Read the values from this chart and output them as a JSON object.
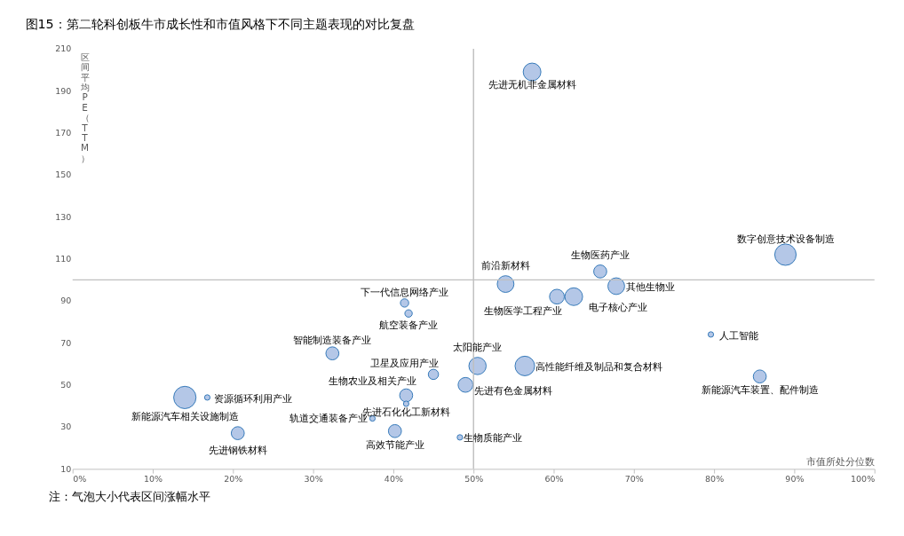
{
  "chart_data": {
    "type": "bubble",
    "title": "图15：第二轮科创板牛市成长性和市值风格下不同主题表现的对比复盘",
    "xlabel": "市值所处分位数",
    "ylabel": "区间平均PE（TTM）",
    "series": [
      {
        "name": "先进无机非金属材料",
        "color": "#b4c7e7",
        "x": [
          57.3
        ],
        "values": [
          199
        ],
        "sizes": [
          0.63
        ]
      },
      {
        "name": "数字创意技术设备制造",
        "color": "#b4c7e7",
        "x": [
          88.9
        ],
        "values": [
          112
        ],
        "sizes": [
          0.92
        ]
      },
      {
        "name": "生物医药产业",
        "color": "#b4c7e7",
        "x": [
          65.8
        ],
        "values": [
          104
        ],
        "sizes": [
          0.34
        ]
      },
      {
        "name": "其他生物业",
        "color": "#b4c7e7",
        "x": [
          67.8
        ],
        "values": [
          97
        ],
        "sizes": [
          0.56
        ]
      },
      {
        "name": "前沿新材料",
        "color": "#b4c7e7",
        "x": [
          54
        ],
        "values": [
          98
        ],
        "sizes": [
          0.56
        ]
      },
      {
        "name": "电子核心产业",
        "color": "#b4c7e7",
        "x": [
          62.5
        ],
        "values": [
          92
        ],
        "sizes": [
          0.63
        ]
      },
      {
        "name": "生物医学工程产业",
        "color": "#b4c7e7",
        "x": [
          60.4
        ],
        "values": [
          92
        ],
        "sizes": [
          0.44
        ]
      },
      {
        "name": "下一代信息网络产业",
        "color": "#b4c7e7",
        "x": [
          41.4
        ],
        "values": [
          89
        ],
        "sizes": [
          0.14
        ]
      },
      {
        "name": "航空装备产业",
        "color": "#b4c7e7",
        "x": [
          41.9
        ],
        "values": [
          84
        ],
        "sizes": [
          0.11
        ]
      },
      {
        "name": "人工智能",
        "color": "#b4c7e7",
        "x": [
          79.6
        ],
        "values": [
          74
        ],
        "sizes": [
          0.06
        ]
      },
      {
        "name": "智能制造装备产业",
        "color": "#b4c7e7",
        "x": [
          32.4
        ],
        "values": [
          65
        ],
        "sizes": [
          0.34
        ]
      },
      {
        "name": "太阳能产业",
        "color": "#b4c7e7",
        "x": [
          50.5
        ],
        "values": [
          59
        ],
        "sizes": [
          0.6
        ]
      },
      {
        "name": "高性能纤维及制品和复合材料",
        "color": "#b4c7e7",
        "x": [
          56.4
        ],
        "values": [
          59
        ],
        "sizes": [
          0.77
        ]
      },
      {
        "name": "卫星及应用产业",
        "color": "#b4c7e7",
        "x": [
          45
        ],
        "values": [
          55
        ],
        "sizes": [
          0.21
        ]
      },
      {
        "name": "新能源汽车装置、配件制造",
        "color": "#b4c7e7",
        "x": [
          85.7
        ],
        "values": [
          54
        ],
        "sizes": [
          0.34
        ]
      },
      {
        "name": "先进有色金属材料",
        "color": "#b4c7e7",
        "x": [
          49
        ],
        "values": [
          50
        ],
        "sizes": [
          0.44
        ]
      },
      {
        "name": "生物农业及相关产业",
        "color": "#b4c7e7",
        "x": [
          41.6
        ],
        "values": [
          45
        ],
        "sizes": [
          0.34
        ]
      },
      {
        "name": "先进石化化工新材料",
        "color": "#b4c7e7",
        "x": [
          41.6
        ],
        "values": [
          41
        ],
        "sizes": [
          0.06
        ]
      },
      {
        "name": "新能源汽车相关设施制造",
        "color": "#b4c7e7",
        "x": [
          14
        ],
        "values": [
          44
        ],
        "sizes": [
          1
        ]
      },
      {
        "name": "资源循环利用产业",
        "color": "#b4c7e7",
        "x": [
          16.8
        ],
        "values": [
          44
        ],
        "sizes": [
          0.06
        ]
      },
      {
        "name": "轨道交通装备产业",
        "color": "#b4c7e7",
        "x": [
          37.4
        ],
        "values": [
          34
        ],
        "sizes": [
          0.06
        ]
      },
      {
        "name": "高效节能产业",
        "color": "#b4c7e7",
        "x": [
          40.2
        ],
        "values": [
          28
        ],
        "sizes": [
          0.34
        ]
      },
      {
        "name": "先进钢铁材料",
        "color": "#b4c7e7",
        "x": [
          20.6
        ],
        "values": [
          27
        ],
        "sizes": [
          0.34
        ]
      },
      {
        "name": "生物质能产业",
        "color": "#b4c7e7",
        "x": [
          48.3
        ],
        "values": [
          25
        ],
        "sizes": [
          0.06
        ]
      }
    ],
    "xlim": [
      0,
      100
    ],
    "xticks": [
      {
        "value": 0,
        "label": "0%"
      },
      {
        "value": 10,
        "label": "10%"
      },
      {
        "value": 20,
        "label": "20%"
      },
      {
        "value": 30,
        "label": "30%"
      },
      {
        "value": 40,
        "label": "40%"
      },
      {
        "value": 50,
        "label": "50%"
      },
      {
        "value": 60,
        "label": "60%"
      },
      {
        "value": 70,
        "label": "70%"
      },
      {
        "value": 80,
        "label": "80%"
      },
      {
        "value": 90,
        "label": "90%"
      },
      {
        "value": 100,
        "label": "100%"
      }
    ],
    "ylim": [
      10,
      210
    ],
    "yticks": [
      10,
      30,
      50,
      70,
      90,
      110,
      130,
      150,
      170,
      190,
      210
    ],
    "ref_lines": [
      {
        "axis": "x",
        "value": 50,
        "color": "#bfbfbf"
      },
      {
        "axis": "y",
        "value": 100,
        "color": "#bfbfbf"
      }
    ],
    "grid": false,
    "legend": false,
    "annotations": [
      "注：气泡大小代表区间涨幅水平"
    ]
  }
}
